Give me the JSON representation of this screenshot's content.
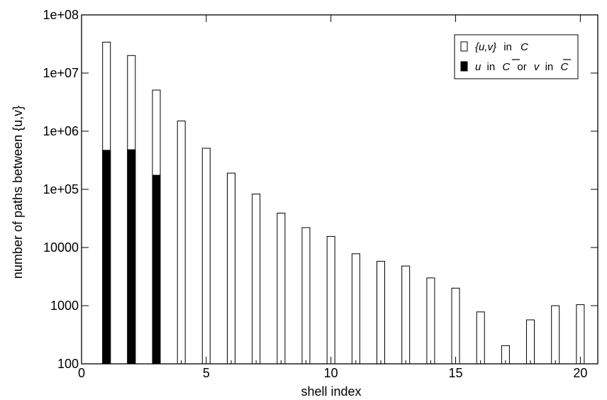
{
  "chart_data": {
    "type": "bar",
    "title": "",
    "xlabel": "shell index",
    "ylabel": "number of paths between {u,v}",
    "yscale": "log",
    "xlim": [
      0,
      20.7
    ],
    "ylim": [
      100,
      100000000
    ],
    "x_ticks": [
      0,
      5,
      10,
      15,
      20
    ],
    "y_ticks": [
      100,
      1000,
      10000,
      100000,
      1000000,
      10000000,
      100000000
    ],
    "y_tick_labels": [
      "100",
      "1000",
      "10000",
      "1e+05",
      "1e+06",
      "1e+07",
      "1e+08"
    ],
    "x_tick_labels": [
      "0",
      "5",
      "10",
      "15",
      "20"
    ],
    "x": [
      1,
      2,
      3,
      4,
      5,
      6,
      7,
      8,
      9,
      10,
      11,
      12,
      13,
      14,
      15,
      16,
      17,
      18,
      19,
      20
    ],
    "series": [
      {
        "name": "{u,v} in C",
        "color": "#ffffff",
        "values": [
          34000000,
          20000000,
          5100000,
          1500000,
          510000,
          190000,
          83000,
          39000,
          22000,
          15500,
          7800,
          5800,
          4800,
          3000,
          2000,
          780,
          205,
          570,
          1000,
          1040
        ]
      },
      {
        "name": "u in C̄ or v in C̄",
        "color": "#000000",
        "values": [
          470000,
          480000,
          175000,
          null,
          null,
          null,
          null,
          null,
          null,
          null,
          null,
          null,
          null,
          null,
          null,
          null,
          null,
          null,
          null,
          null
        ]
      }
    ],
    "legend_location": "top-right",
    "grid": false
  },
  "legend": {
    "entry1": {
      "part1": "{u,v}",
      "part2": "in",
      "part3": "C"
    },
    "entry2": {
      "part1": "u",
      "part2": "in",
      "part3": "C",
      "part4": "or",
      "part5": "v",
      "part6": "in",
      "part7": "C"
    }
  }
}
